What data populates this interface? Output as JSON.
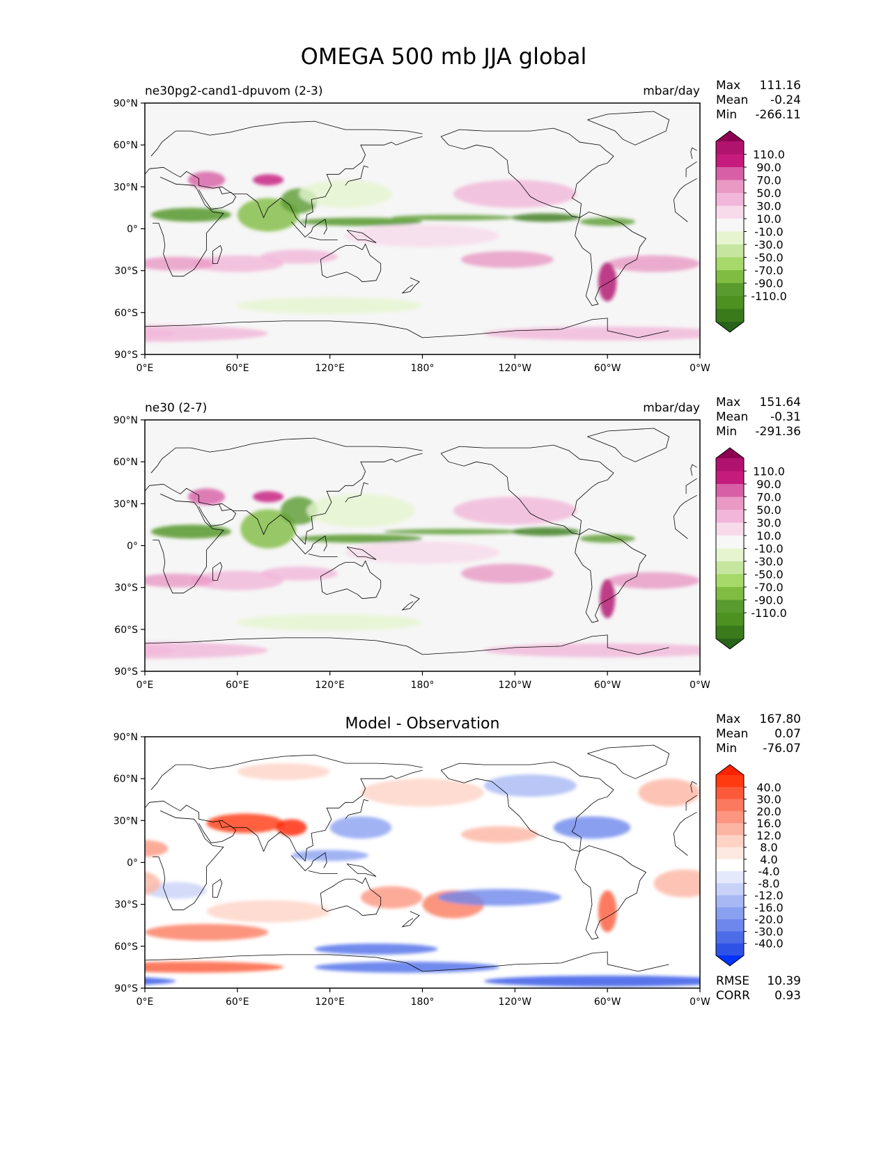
{
  "chart_data": {
    "type": "contour-map",
    "title": "OMEGA 500 mb JJA global",
    "axes": {
      "lat_ticks": [
        "90°N",
        "60°N",
        "30°N",
        "0°",
        "30°S",
        "60°S",
        "90°S"
      ],
      "lon_ticks": [
        "0°E",
        "60°E",
        "120°E",
        "180°",
        "120°W",
        "60°W",
        "0°W"
      ],
      "lat_range": [
        -90,
        90
      ],
      "lon_range": [
        0,
        360
      ]
    },
    "panels": [
      {
        "id": "test",
        "left_title": "ne30pg2-cand1-dpuvom (2-3)",
        "center_title": "",
        "units": "mbar/day",
        "stats": [
          {
            "label": "Max",
            "value": "111.16"
          },
          {
            "label": "Mean",
            "value": "-0.24"
          },
          {
            "label": "Min",
            "value": "-266.11"
          }
        ],
        "colorbar_labels": [
          "110.0",
          "90.0",
          "70.0",
          "50.0",
          "30.0",
          "10.0",
          "-10.0",
          "-30.0",
          "-50.0",
          "-70.0",
          "-90.0",
          "-110.0"
        ],
        "colorbar_colors": [
          "#8e0152",
          "#b0136d",
          "#c51b7d",
          "#d75fa5",
          "#e999c4",
          "#f1b6da",
          "#f8dbeb",
          "#f7f7f7",
          "#e6f5d0",
          "#c6e6a0",
          "#a6d96a",
          "#7fbc41",
          "#5a9b2f",
          "#4d9221",
          "#3a7a1b",
          "#276419"
        ],
        "footer_stats": []
      },
      {
        "id": "reference",
        "left_title": "ne30 (2-7)",
        "center_title": "",
        "units": "mbar/day",
        "stats": [
          {
            "label": "Max",
            "value": "151.64"
          },
          {
            "label": "Mean",
            "value": "-0.31"
          },
          {
            "label": "Min",
            "value": "-291.36"
          }
        ],
        "colorbar_labels": [
          "110.0",
          "90.0",
          "70.0",
          "50.0",
          "30.0",
          "10.0",
          "-10.0",
          "-30.0",
          "-50.0",
          "-70.0",
          "-90.0",
          "-110.0"
        ],
        "colorbar_colors": [
          "#8e0152",
          "#b0136d",
          "#c51b7d",
          "#d75fa5",
          "#e999c4",
          "#f1b6da",
          "#f8dbeb",
          "#f7f7f7",
          "#e6f5d0",
          "#c6e6a0",
          "#a6d96a",
          "#7fbc41",
          "#5a9b2f",
          "#4d9221",
          "#3a7a1b",
          "#276419"
        ],
        "footer_stats": []
      },
      {
        "id": "difference",
        "left_title": "",
        "center_title": "Model - Observation",
        "units": "",
        "stats": [
          {
            "label": "Max",
            "value": "167.80"
          },
          {
            "label": "Mean",
            "value": "0.07"
          },
          {
            "label": "Min",
            "value": "-76.07"
          }
        ],
        "colorbar_labels": [
          "40.0",
          "30.0",
          "20.0",
          "16.0",
          "12.0",
          "8.0",
          "4.0",
          "-4.0",
          "-8.0",
          "-12.0",
          "-16.0",
          "-20.0",
          "-30.0",
          "-40.0"
        ],
        "colorbar_colors": [
          "#ff2200",
          "#ff3a10",
          "#fb5a3a",
          "#fb7a5f",
          "#fc9680",
          "#fdb5a3",
          "#fed3c5",
          "#fde9e2",
          "#ffffff",
          "#e4e9fb",
          "#c8d2f8",
          "#a7b8f4",
          "#8aa0f0",
          "#6d87ec",
          "#4d6de8",
          "#2f52e6",
          "#0033ff"
        ],
        "footer_stats": [
          {
            "label": "RMSE",
            "value": "10.39"
          },
          {
            "label": "CORR",
            "value": "0.93"
          }
        ]
      }
    ]
  }
}
